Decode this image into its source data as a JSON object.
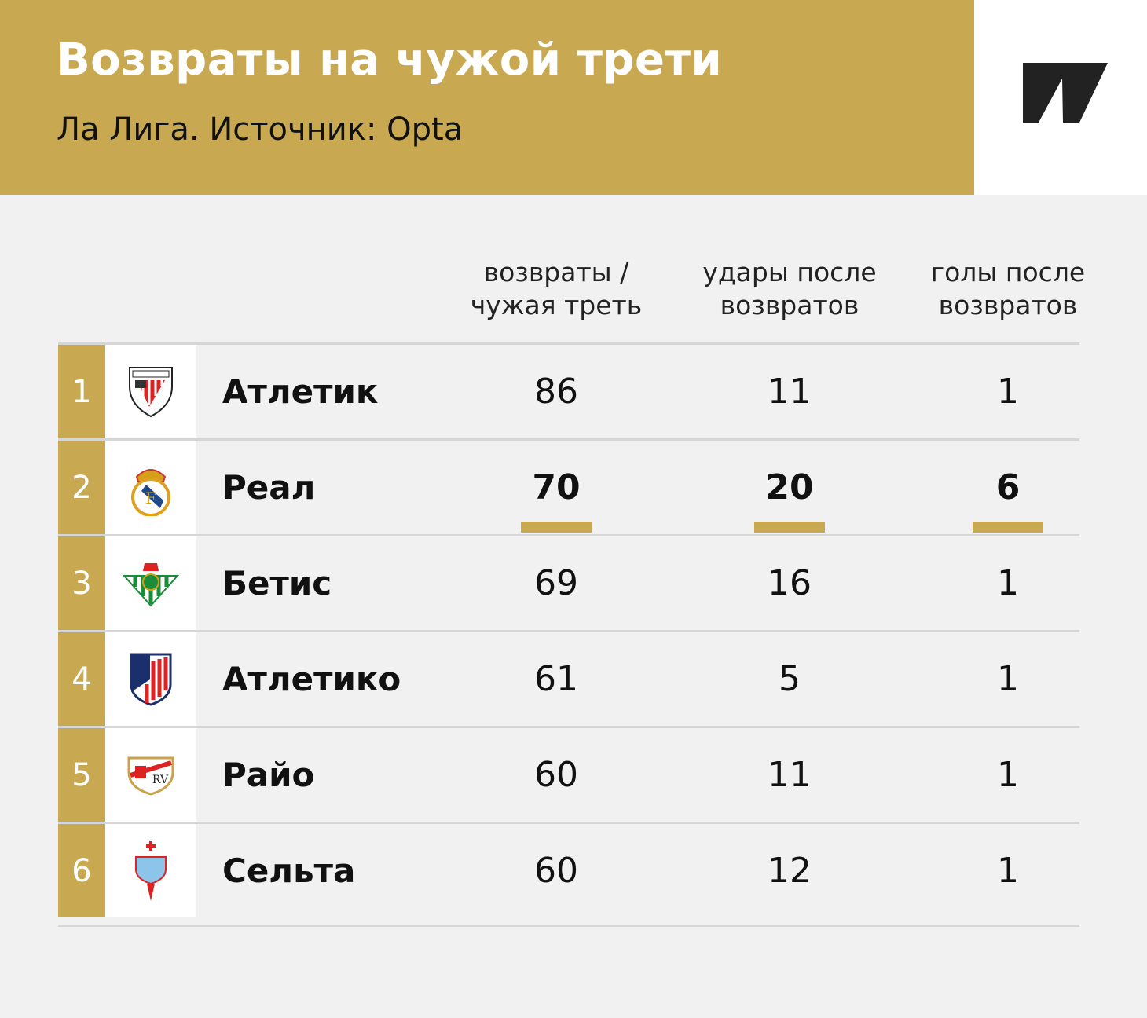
{
  "header": {
    "title": "Возвраты на чужой трети",
    "subtitle": "Ла Лига. Источник: Opta"
  },
  "colors": {
    "accent": "#c8a951",
    "background": "#f1f1f1"
  },
  "chart_data": {
    "type": "table",
    "columns": [
      "возвраты / чужая треть",
      "удары после возвратов",
      "голы после возвратов"
    ],
    "columns_lines": [
      [
        "возвраты /",
        "чужая треть"
      ],
      [
        "удары после",
        "возвратов"
      ],
      [
        "голы после",
        "возвратов"
      ]
    ],
    "rows": [
      {
        "rank": "1",
        "team": "Атлетик",
        "logo": "athletic-club-crest",
        "values": [
          "86",
          "11",
          "1"
        ],
        "highlight": false
      },
      {
        "rank": "2",
        "team": "Реал",
        "logo": "real-madrid-crest",
        "values": [
          "70",
          "20",
          "6"
        ],
        "highlight": true
      },
      {
        "rank": "3",
        "team": "Бетис",
        "logo": "real-betis-crest",
        "values": [
          "69",
          "16",
          "1"
        ],
        "highlight": false
      },
      {
        "rank": "4",
        "team": "Атлетико",
        "logo": "atletico-madrid-crest",
        "values": [
          "61",
          "5",
          "1"
        ],
        "highlight": false
      },
      {
        "rank": "5",
        "team": "Райо",
        "logo": "rayo-vallecano-crest",
        "values": [
          "60",
          "11",
          "1"
        ],
        "highlight": false
      },
      {
        "rank": "6",
        "team": "Сельта",
        "logo": "celta-vigo-crest",
        "values": [
          "60",
          "12",
          "1"
        ],
        "highlight": false
      }
    ]
  }
}
